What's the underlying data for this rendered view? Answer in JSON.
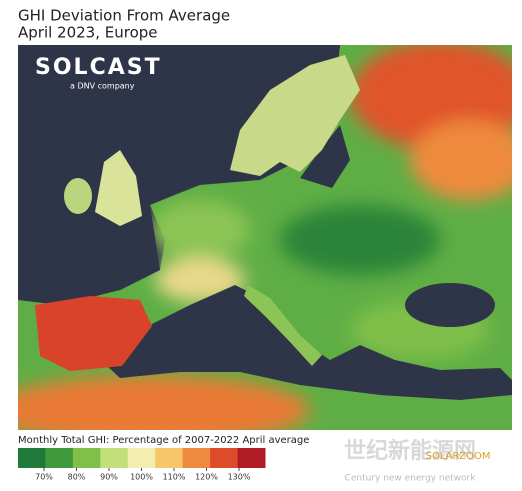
{
  "header": {
    "title": "GHI Deviation From Average",
    "subtitle": "April 2023, Europe"
  },
  "logo": {
    "name": "SOLCAST",
    "tagline": "a DNV company"
  },
  "chart_data": {
    "type": "colorbar",
    "title": "Monthly Total GHI: Percentage of 2007-2022 April average",
    "clim": [
      62,
      138
    ],
    "ticks": [
      {
        "value": 70,
        "label": "70%"
      },
      {
        "value": 80,
        "label": "80%"
      },
      {
        "value": 90,
        "label": "90%"
      },
      {
        "value": 100,
        "label": "100%"
      },
      {
        "value": 110,
        "label": "110%"
      },
      {
        "value": 120,
        "label": "120%"
      },
      {
        "value": 130,
        "label": "130%"
      }
    ],
    "colors": [
      "#1f7a3a",
      "#3f9a3c",
      "#7fbf4a",
      "#c3df7a",
      "#f3eeb0",
      "#f7c56a",
      "#ef8a3e",
      "#de4b2a",
      "#b01c26"
    ]
  },
  "watermark": {
    "site": "世纪新能源网",
    "site_en": "Century new energy network",
    "brand": "SOLARZOOM"
  }
}
